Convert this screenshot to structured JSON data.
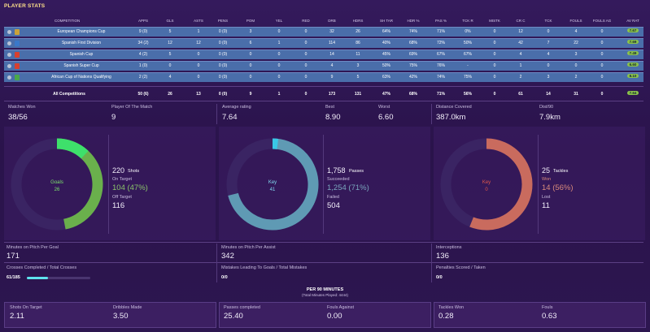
{
  "title": "PLAYER STATS",
  "headers": [
    "COMPETITION",
    "APPS",
    "GLS",
    "ASTS",
    "PENS",
    "POM",
    "YEL",
    "RED",
    "DRB",
    "HDRS",
    "SH TAR",
    "HDR %",
    "PAS %",
    "TCK R",
    "MISTK",
    "CR C",
    "TCK",
    "FOULS",
    "FOULS AG",
    "AV RAT"
  ],
  "rows": [
    {
      "comp": "European Champions Cup",
      "vals": [
        "9 (0)",
        "5",
        "1",
        "0 (0)",
        "3",
        "0",
        "0",
        "32",
        "26",
        "64%",
        "74%",
        "71%",
        "0%",
        "0",
        "12",
        "0",
        "4",
        "0"
      ],
      "rating": "7.67",
      "crest": "#c9a23a"
    },
    {
      "comp": "Spanish First Division",
      "vals": [
        "34 (2)",
        "12",
        "12",
        "0 (0)",
        "6",
        "1",
        "0",
        "114",
        "86",
        "40%",
        "68%",
        "72%",
        "50%",
        "0",
        "42",
        "7",
        "22",
        "0"
      ],
      "rating": "7.69",
      "crest": "#3a78c9"
    },
    {
      "comp": "Spanish Cup",
      "vals": [
        "4 (2)",
        "5",
        "0",
        "0 (0)",
        "0",
        "0",
        "0",
        "14",
        "11",
        "45%",
        "69%",
        "67%",
        "67%",
        "0",
        "4",
        "4",
        "3",
        "0"
      ],
      "rating": "7.49",
      "crest": "#d8402f"
    },
    {
      "comp": "Spanish Super Cup",
      "vals": [
        "1 (0)",
        "0",
        "0",
        "0 (0)",
        "0",
        "0",
        "0",
        "4",
        "3",
        "50%",
        "75%",
        "76%",
        "-",
        "0",
        "1",
        "0",
        "0",
        "0"
      ],
      "rating": "6.60",
      "crest": "#d8402f"
    },
    {
      "comp": "African Cup of Nations Qualifying",
      "vals": [
        "2 (2)",
        "4",
        "0",
        "0 (0)",
        "0",
        "0",
        "0",
        "9",
        "5",
        "63%",
        "42%",
        "74%",
        "75%",
        "0",
        "2",
        "3",
        "2",
        "0"
      ],
      "rating": "8.10",
      "crest": "#4aa84a"
    }
  ],
  "totals": {
    "label": "All Competitions",
    "vals": [
      "50 (6)",
      "26",
      "13",
      "0 (0)",
      "9",
      "1",
      "0",
      "173",
      "131",
      "47%",
      "68%",
      "71%",
      "56%",
      "0",
      "61",
      "14",
      "31",
      "0"
    ],
    "rating": "7.64"
  },
  "stats": {
    "matches_won_label": "Matches Won",
    "matches_won": "38/56",
    "pom_label": "Player Of The Match",
    "pom": "9",
    "avg_rating_label": "Average rating",
    "avg_rating": "7.64",
    "best_label": "Best",
    "best": "8.90",
    "worst_label": "Worst",
    "worst": "6.60",
    "distance_label": "Distance Covered",
    "distance": "387.0km",
    "dist90_label": "Dist/90",
    "dist90": "7.9km"
  },
  "donuts": {
    "shots": {
      "center_label": "Goals",
      "center_value": "26",
      "total": "220",
      "total_label": "Shots",
      "sub1_label": "On Target",
      "sub1": "104 (47%)",
      "sub2_label": "Off Target",
      "sub2": "116",
      "fraction": 0.47,
      "color": "#6ab04c",
      "accent": "#3ee06b",
      "accent_fraction": 0.12
    },
    "passes": {
      "center_label": "Key",
      "center_value": "41",
      "total": "1,758",
      "total_label": "Passes",
      "sub1_label": "Succeeded",
      "sub1": "1,254 (71%)",
      "sub2_label": "Failed",
      "sub2": "504",
      "fraction": 0.71,
      "color": "#5f9ab4",
      "accent": "#39c7e6",
      "accent_fraction": 0.02
    },
    "tackles": {
      "center_label": "Key",
      "center_value": "0",
      "total": "25",
      "total_label": "Tackles",
      "sub1_label": "Won",
      "sub1": "14 (56%)",
      "sub2_label": "Lost",
      "sub2": "11",
      "fraction": 0.56,
      "color": "#c96b5e",
      "accent": "#c96b5e",
      "accent_fraction": 0
    }
  },
  "row2": {
    "mpg_label": "Minutes on Pitch Per Goal",
    "mpg": "171",
    "mpa_label": "Minutes on Pitch Per Assist",
    "mpa": "342",
    "int_label": "Interceptions",
    "int": "136",
    "crosses_label": "Crosses Completed / Total Crosses",
    "crosses": "61/185",
    "crosses_fraction": 0.33,
    "mistakes_label": "Mistakes Leading To Goals / Total Mistakes",
    "mistakes": "0/0",
    "pens_label": "Penalties Scored / Taken",
    "pens": "0/0"
  },
  "per90": {
    "title": "PER 90 MINUTES",
    "subtitle": "(Total Minutes Played: 4444)",
    "items": [
      {
        "label": "Shots On Target",
        "value": "2.11"
      },
      {
        "label": "Dribbles Made",
        "value": "3.50"
      },
      {
        "label": "Passes completed",
        "value": "25.40"
      },
      {
        "label": "Fouls Against",
        "value": "0.00"
      },
      {
        "label": "Tackles Won",
        "value": "0.28"
      },
      {
        "label": "Fouls",
        "value": "0.63"
      }
    ]
  }
}
